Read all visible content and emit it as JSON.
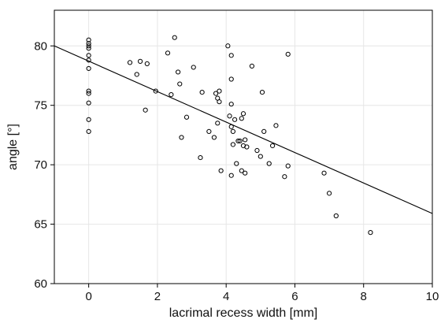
{
  "chart_data": {
    "type": "scatter",
    "xlabel": "lacrimal recess width [mm]",
    "ylabel": "angle [°]",
    "xlim": [
      -1,
      10
    ],
    "ylim": [
      60,
      83
    ],
    "xticks": [
      0,
      2,
      4,
      6,
      8,
      10
    ],
    "yticks": [
      60,
      65,
      70,
      75,
      80
    ],
    "grid": true,
    "legend": "none",
    "points": [
      [
        0,
        80.5
      ],
      [
        0,
        80.2
      ],
      [
        0,
        80.0
      ],
      [
        0,
        79.8
      ],
      [
        0,
        79.2
      ],
      [
        0,
        78.8
      ],
      [
        0,
        78.1
      ],
      [
        0,
        76.2
      ],
      [
        0,
        76.0
      ],
      [
        0,
        75.2
      ],
      [
        0,
        73.8
      ],
      [
        0,
        72.8
      ],
      [
        1.2,
        78.6
      ],
      [
        1.4,
        77.6
      ],
      [
        1.5,
        78.7
      ],
      [
        1.7,
        78.5
      ],
      [
        1.65,
        74.6
      ],
      [
        1.95,
        76.2
      ],
      [
        2.3,
        79.4
      ],
      [
        2.4,
        75.9
      ],
      [
        2.5,
        80.7
      ],
      [
        2.6,
        77.8
      ],
      [
        2.65,
        76.8
      ],
      [
        2.7,
        72.3
      ],
      [
        2.85,
        74.0
      ],
      [
        3.05,
        78.2
      ],
      [
        3.3,
        76.1
      ],
      [
        3.25,
        70.6
      ],
      [
        3.5,
        72.8
      ],
      [
        3.65,
        72.3
      ],
      [
        3.7,
        76.0
      ],
      [
        3.75,
        75.6
      ],
      [
        3.8,
        76.2
      ],
      [
        3.8,
        75.3
      ],
      [
        3.75,
        73.5
      ],
      [
        3.85,
        69.5
      ],
      [
        4.05,
        80.0
      ],
      [
        4.15,
        79.2
      ],
      [
        4.15,
        77.2
      ],
      [
        4.1,
        74.1
      ],
      [
        4.15,
        75.1
      ],
      [
        4.15,
        73.2
      ],
      [
        4.2,
        72.8
      ],
      [
        4.25,
        73.8
      ],
      [
        4.2,
        71.7
      ],
      [
        4.15,
        69.1
      ],
      [
        4.3,
        70.1
      ],
      [
        4.35,
        72.0
      ],
      [
        4.4,
        72.0
      ],
      [
        4.45,
        73.9
      ],
      [
        4.5,
        74.3
      ],
      [
        4.5,
        71.6
      ],
      [
        4.45,
        69.5
      ],
      [
        4.55,
        72.1
      ],
      [
        4.6,
        71.5
      ],
      [
        4.55,
        69.3
      ],
      [
        4.75,
        78.3
      ],
      [
        4.9,
        71.2
      ],
      [
        5.0,
        70.7
      ],
      [
        5.05,
        76.1
      ],
      [
        5.1,
        72.8
      ],
      [
        5.25,
        70.1
      ],
      [
        5.35,
        71.6
      ],
      [
        5.45,
        73.3
      ],
      [
        5.7,
        69.0
      ],
      [
        5.8,
        69.9
      ],
      [
        5.8,
        79.3
      ],
      [
        6.85,
        69.3
      ],
      [
        7.0,
        67.6
      ],
      [
        7.2,
        65.7
      ],
      [
        8.2,
        64.3
      ]
    ],
    "fit_line": {
      "x": [
        -1,
        10
      ],
      "y": [
        80.0,
        65.9
      ]
    }
  }
}
